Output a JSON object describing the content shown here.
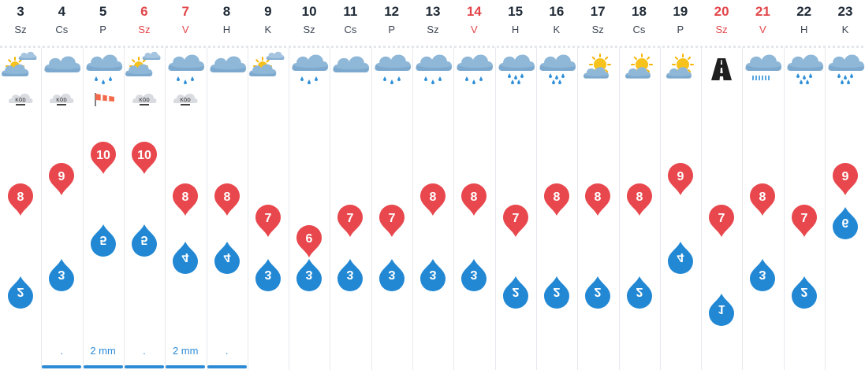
{
  "colors": {
    "max": "#e8484d",
    "min": "#2288d4",
    "weekend": "#e2464a",
    "precip": "#2d8bd6"
  },
  "days": [
    {
      "num": "3",
      "dow": "Sz",
      "weekend": false,
      "icon": "partly-cloudy-sun-icon",
      "badge": "fog",
      "max": "8",
      "min": "2",
      "precip": "",
      "bar": false
    },
    {
      "num": "4",
      "dow": "Cs",
      "weekend": false,
      "icon": "cloud-icon",
      "badge": "fog",
      "max": "9",
      "min": "3",
      "precip": ".",
      "bar": true
    },
    {
      "num": "5",
      "dow": "P",
      "weekend": false,
      "icon": "cloud-light-rain-icon",
      "badge": "wind",
      "max": "10",
      "min": "5",
      "precip": "2 mm",
      "bar": true
    },
    {
      "num": "6",
      "dow": "Sz",
      "weekend": true,
      "icon": "partly-cloudy-sun-icon",
      "badge": "fog",
      "max": "10",
      "min": "5",
      "precip": ".",
      "bar": true
    },
    {
      "num": "7",
      "dow": "V",
      "weekend": true,
      "icon": "cloud-light-rain-icon",
      "badge": "fog",
      "max": "8",
      "min": "4",
      "precip": "2 mm",
      "bar": true
    },
    {
      "num": "8",
      "dow": "H",
      "weekend": false,
      "icon": "cloud-icon",
      "badge": "",
      "max": "8",
      "min": "4",
      "precip": ".",
      "bar": true
    },
    {
      "num": "9",
      "dow": "K",
      "weekend": false,
      "icon": "partly-cloudy-sun-icon",
      "badge": "",
      "max": "7",
      "min": "3",
      "precip": "",
      "bar": false
    },
    {
      "num": "10",
      "dow": "Sz",
      "weekend": false,
      "icon": "cloud-light-rain-icon",
      "badge": "",
      "max": "6",
      "min": "3",
      "precip": "",
      "bar": false
    },
    {
      "num": "11",
      "dow": "Cs",
      "weekend": false,
      "icon": "cloud-icon",
      "badge": "",
      "max": "7",
      "min": "3",
      "precip": "",
      "bar": false
    },
    {
      "num": "12",
      "dow": "P",
      "weekend": false,
      "icon": "cloud-light-rain-icon",
      "badge": "",
      "max": "7",
      "min": "3",
      "precip": "",
      "bar": false
    },
    {
      "num": "13",
      "dow": "Sz",
      "weekend": false,
      "icon": "cloud-light-rain-icon",
      "badge": "",
      "max": "8",
      "min": "3",
      "precip": "",
      "bar": false
    },
    {
      "num": "14",
      "dow": "V",
      "weekend": true,
      "icon": "cloud-light-rain-icon",
      "badge": "",
      "max": "8",
      "min": "3",
      "precip": "",
      "bar": false
    },
    {
      "num": "15",
      "dow": "H",
      "weekend": false,
      "icon": "cloud-rain-icon",
      "badge": "",
      "max": "7",
      "min": "2",
      "precip": "",
      "bar": false
    },
    {
      "num": "16",
      "dow": "K",
      "weekend": false,
      "icon": "cloud-rain-icon",
      "badge": "",
      "max": "8",
      "min": "2",
      "precip": "",
      "bar": false
    },
    {
      "num": "17",
      "dow": "Sz",
      "weekend": false,
      "icon": "sun-behind-cloud-icon",
      "badge": "",
      "max": "8",
      "min": "2",
      "precip": "",
      "bar": false
    },
    {
      "num": "18",
      "dow": "Cs",
      "weekend": false,
      "icon": "sun-behind-cloud-icon",
      "badge": "",
      "max": "8",
      "min": "2",
      "precip": "",
      "bar": false
    },
    {
      "num": "19",
      "dow": "P",
      "weekend": false,
      "icon": "sun-behind-cloud-icon",
      "badge": "",
      "max": "9",
      "min": "4",
      "precip": "",
      "bar": false
    },
    {
      "num": "20",
      "dow": "Sz",
      "weekend": true,
      "icon": "road-icon",
      "badge": "",
      "max": "7",
      "min": "1",
      "precip": "",
      "bar": false
    },
    {
      "num": "21",
      "dow": "V",
      "weekend": true,
      "icon": "cloud-drizzle-icon",
      "badge": "",
      "max": "8",
      "min": "3",
      "precip": "",
      "bar": false
    },
    {
      "num": "22",
      "dow": "H",
      "weekend": false,
      "icon": "cloud-rain-icon",
      "badge": "",
      "max": "7",
      "min": "2",
      "precip": "",
      "bar": false
    },
    {
      "num": "23",
      "dow": "K",
      "weekend": false,
      "icon": "cloud-rain-icon",
      "badge": "",
      "max": "9",
      "min": "6",
      "precip": "",
      "bar": false
    }
  ],
  "fog_label": "KÖD"
}
